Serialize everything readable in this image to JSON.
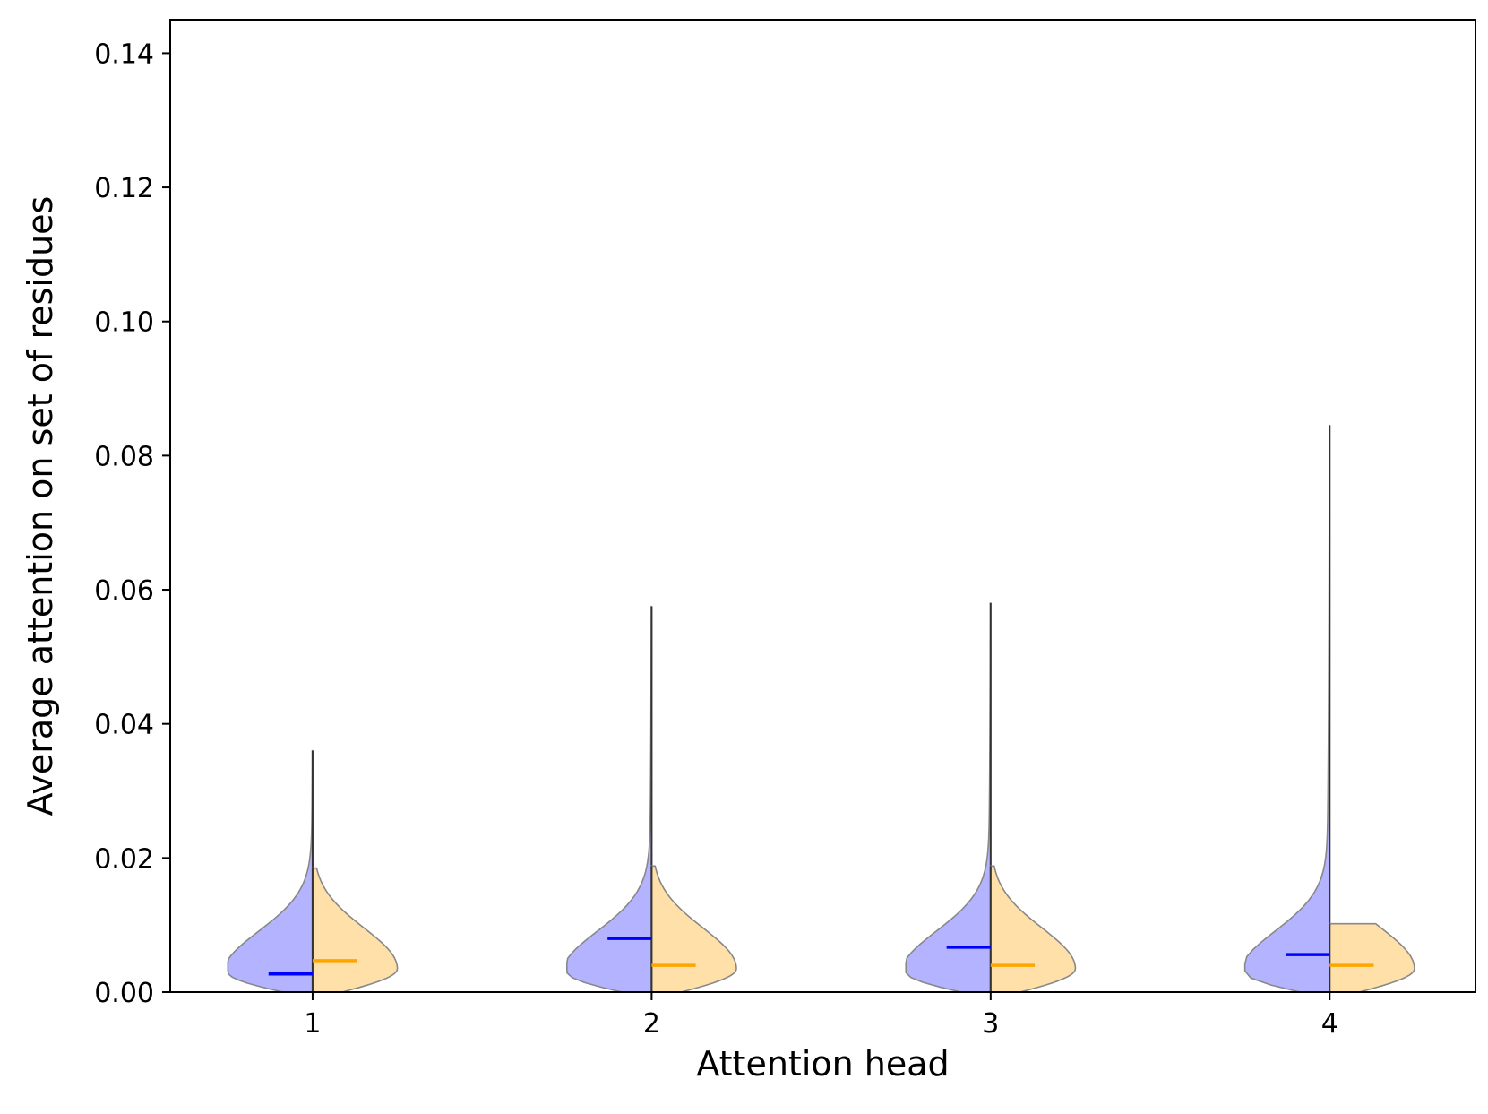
{
  "chart_data": {
    "type": "violin",
    "split": true,
    "title": "",
    "xlabel": "Attention head",
    "ylabel": "Average attention on set of residues",
    "categories": [
      "1",
      "2",
      "3",
      "4"
    ],
    "xlim": [
      0.58,
      4.43
    ],
    "ylim": [
      0.0,
      0.145
    ],
    "yticks": [
      0.0,
      0.02,
      0.04,
      0.06,
      0.08,
      0.1,
      0.12,
      0.14
    ],
    "ytick_labels": [
      "0.00",
      "0.02",
      "0.04",
      "0.06",
      "0.08",
      "0.10",
      "0.12",
      "0.14"
    ],
    "grid": false,
    "legend": null,
    "colors": {
      "left_fill": "#b3b3ff",
      "right_fill": "#ffe0a8",
      "left_median": "#0000ff",
      "right_median": "#ffa500",
      "outline": "#888888"
    },
    "series": [
      {
        "side": "left",
        "medians": [
          0.0027,
          0.008,
          0.0067,
          0.0056
        ],
        "mins": [
          0.0,
          0.0,
          0.0,
          0.0
        ],
        "maxs": [
          0.036,
          0.0575,
          0.058,
          0.0845
        ],
        "peak_y": [
          0.003,
          0.003,
          0.003,
          0.003
        ],
        "width_at_peak": [
          0.25,
          0.25,
          0.25,
          0.25
        ]
      },
      {
        "side": "right",
        "medians": [
          0.0047,
          0.004,
          0.004,
          0.004
        ],
        "mins": [
          0.0,
          0.0,
          0.0,
          0.0
        ],
        "maxs": [
          0.0185,
          0.0188,
          0.0188,
          0.0102
        ],
        "peak_y": [
          0.0035,
          0.0035,
          0.0035,
          0.0035
        ],
        "width_at_peak": [
          0.25,
          0.25,
          0.25,
          0.25
        ]
      }
    ]
  }
}
